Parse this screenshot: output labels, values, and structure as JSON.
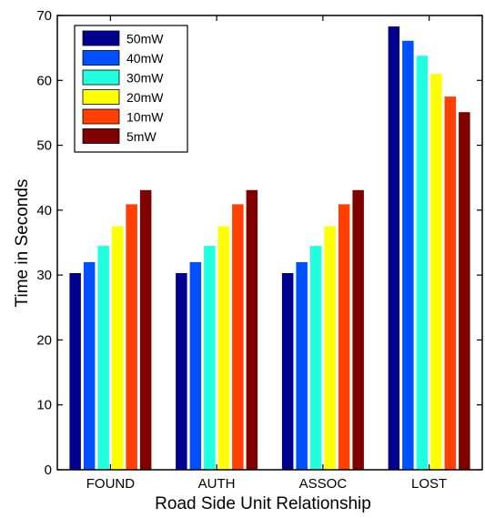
{
  "chart_data": {
    "type": "bar",
    "title": "",
    "xlabel": "Road Side Unit Relationship",
    "ylabel": "Time in Seconds",
    "ylim": [
      0,
      70
    ],
    "yticks": [
      "0",
      "10",
      "20",
      "30",
      "40",
      "50",
      "60",
      "70"
    ],
    "categories": [
      "FOUND",
      "AUTH",
      "ASSOC",
      "LOST"
    ],
    "grid": false,
    "legend_position": "top-left",
    "series": [
      {
        "name": "50mW",
        "color": "#00008f",
        "values": [
          30.3,
          30.3,
          30.3,
          68.3
        ]
      },
      {
        "name": "40mW",
        "color": "#0050ff",
        "values": [
          32.0,
          32.0,
          32.0,
          66.1
        ]
      },
      {
        "name": "30mW",
        "color": "#20ffdf",
        "values": [
          34.5,
          34.5,
          34.5,
          63.8
        ]
      },
      {
        "name": "20mW",
        "color": "#ffff00",
        "values": [
          37.5,
          37.5,
          37.5,
          61.0
        ]
      },
      {
        "name": "10mW",
        "color": "#ff4000",
        "values": [
          40.9,
          40.9,
          40.9,
          57.5
        ]
      },
      {
        "name": "5mW",
        "color": "#800000",
        "values": [
          43.1,
          43.1,
          43.1,
          55.1
        ]
      }
    ]
  }
}
